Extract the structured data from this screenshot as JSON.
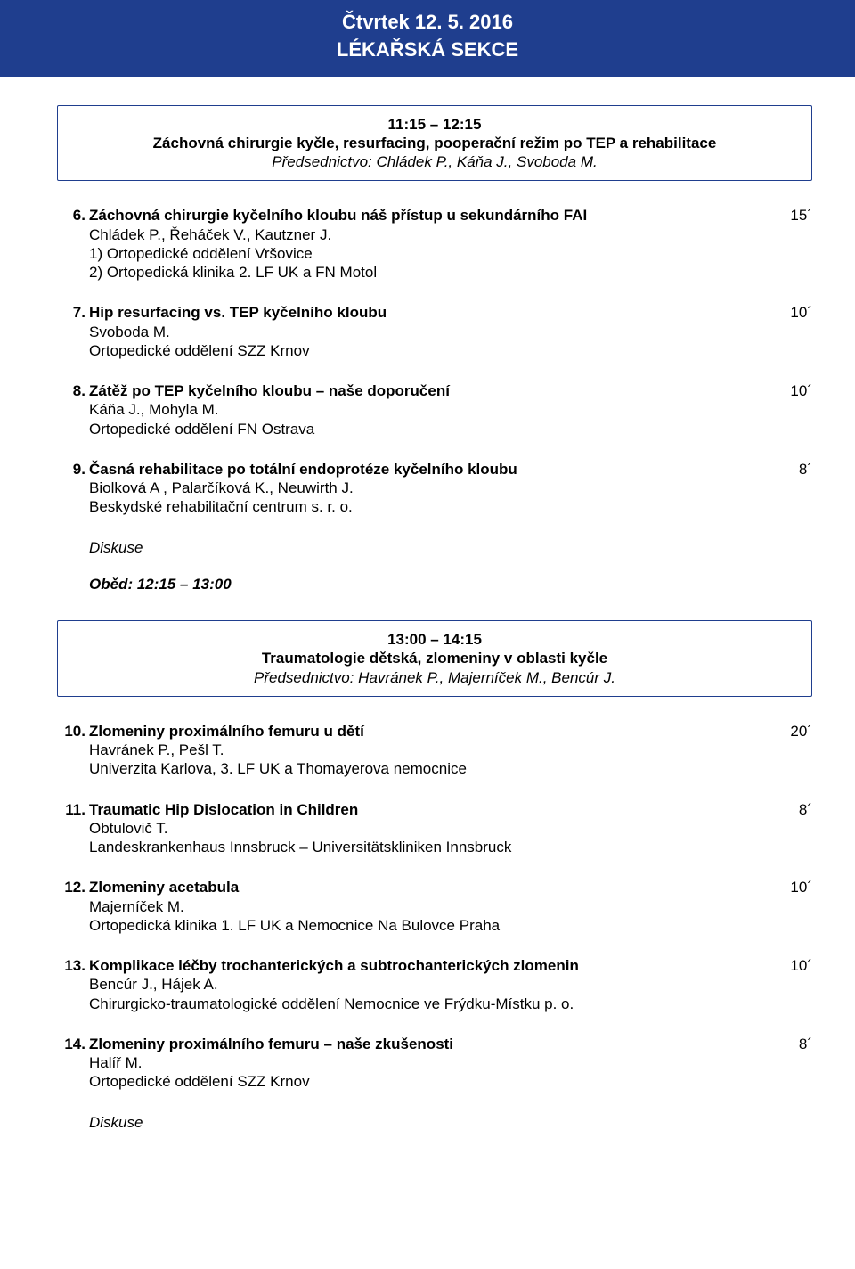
{
  "header": {
    "date": "Čtvrtek 12. 5. 2016",
    "section": "LÉKAŘSKÁ SEKCE"
  },
  "colors": {
    "brand": "#1f3e8e",
    "text": "#000000",
    "bg": "#ffffff"
  },
  "session1": {
    "time": "11:15 – 12:15",
    "title": "Záchovná chirurgie kyčle, resurfacing, pooperační režim po TEP a rehabilitace",
    "chair": "Předsednictvo: Chládek P., Káňa J., Svoboda M."
  },
  "items1": [
    {
      "num": "6",
      "title": "Záchovná chirurgie kyčelního kloubu náš přístup u sekundárního FAI",
      "dur": "15´",
      "auth": "Chládek P., Řeháček V., Kautzner J.",
      "aff": "1) Ortopedické oddělení Vršovice\n2) Ortopedická klinika 2. LF UK a FN Motol"
    },
    {
      "num": "7",
      "title": "Hip resurfacing vs. TEP kyčelního kloubu",
      "dur": "10´",
      "auth": "Svoboda M.",
      "aff": "Ortopedické oddělení SZZ Krnov"
    },
    {
      "num": "8",
      "title": "Zátěž po TEP kyčelního kloubu – naše doporučení",
      "dur": "10´",
      "auth": "Káňa J., Mohyla M.",
      "aff": "Ortopedické oddělení FN Ostrava"
    },
    {
      "num": "9",
      "title": "Časná rehabilitace po totální endoprotéze kyčelního kloubu",
      "dur": "8´",
      "auth": "Biolková A , Palarčíková K., Neuwirth J.",
      "aff": "Beskydské rehabilitační centrum s. r. o."
    }
  ],
  "discussion": "Diskuse",
  "lunch": "Oběd: 12:15 – 13:00",
  "session2": {
    "time": "13:00 – 14:15",
    "title": "Traumatologie dětská, zlomeniny v oblasti kyčle",
    "chair": "Předsednictvo: Havránek P., Majerníček M., Bencúr J."
  },
  "items2": [
    {
      "num": "10",
      "title": "Zlomeniny proximálního femuru u dětí",
      "dur": "20´",
      "auth": "Havránek P., Pešl T.",
      "aff": "Univerzita Karlova, 3. LF UK a Thomayerova nemocnice"
    },
    {
      "num": "11",
      "title": "Traumatic Hip Dislocation in Children",
      "dur": "8´",
      "auth": "Obtulovič T.",
      "aff": "Landeskrankenhaus Innsbruck – Universitätskliniken Innsbruck"
    },
    {
      "num": "12",
      "title": "Zlomeniny acetabula",
      "dur": "10´",
      "auth": "Majerníček M.",
      "aff": "Ortopedická klinika 1. LF UK a Nemocnice Na Bulovce Praha"
    },
    {
      "num": "13",
      "title": "Komplikace léčby trochanterických a subtrochanterických zlomenin",
      "dur": "10´",
      "auth": "Bencúr J., Hájek A.",
      "aff": "Chirurgicko-traumatologické oddělení Nemocnice ve Frýdku-Místku  p. o."
    },
    {
      "num": "14",
      "title": "Zlomeniny proximálního femuru – naše zkušenosti",
      "dur": "8´",
      "auth": "Halíř M.",
      "aff": "Ortopedické oddělení SZZ Krnov"
    }
  ]
}
